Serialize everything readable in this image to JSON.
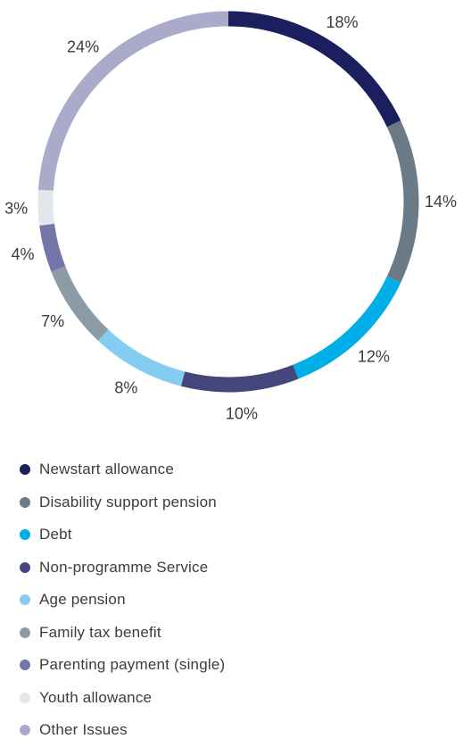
{
  "chart_data": {
    "type": "pie",
    "title": "",
    "categories": [
      "Newstart allowance",
      "Disability support pension",
      "Debt",
      "Non-programme Service",
      "Age pension",
      "Family tax benefit",
      "Parenting payment (single)",
      "Youth allowance",
      "Other Issues"
    ],
    "values": [
      18,
      14,
      12,
      10,
      8,
      7,
      4,
      3,
      24
    ],
    "labels": [
      "18%",
      "14%",
      "12%",
      "10%",
      "8%",
      "7%",
      "4%",
      "3%",
      "24%"
    ],
    "colors": [
      "#1b1f5e",
      "#6a7b87",
      "#00aee8",
      "#44467c",
      "#84cdf2",
      "#8c9ca6",
      "#7475a8",
      "#e2e7ec",
      "#aaaacb"
    ],
    "donut": true,
    "legend_placement": "bottom"
  }
}
